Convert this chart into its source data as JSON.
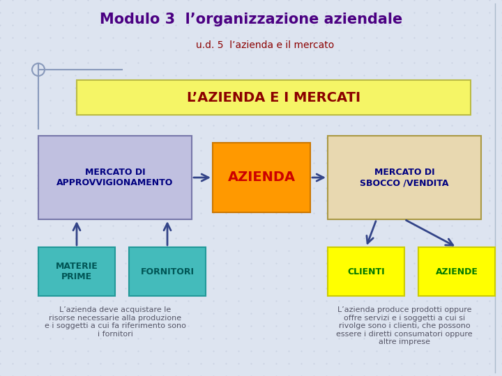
{
  "title": "Modulo 3  l’organizzazione aziendale",
  "subtitle": "u.d. 5  l’azienda e il mercato",
  "title_color": "#4b0082",
  "subtitle_color": "#8b0000",
  "bg_color": "#dde4f0",
  "main_banner_text": "L’AZIENDA E I MERCATI",
  "main_banner_bg": "#f5f566",
  "main_banner_border": "#bbbb44",
  "main_banner_text_color": "#8b0000",
  "box_mercato_approv": {
    "label": "MERCATO DI\nAPPROVVIGIONAMENTO",
    "bg": "#c0c0e0",
    "border": "#7777aa",
    "text_color": "#000080"
  },
  "box_azienda": {
    "label": "AZIENDA",
    "bg": "#ff9900",
    "border": "#cc7700",
    "text_color": "#cc0000"
  },
  "box_mercato_sbocco": {
    "label": "MERCATO DI\nSBOCCO /VENDITA",
    "bg": "#e8d8b0",
    "border": "#aa9944",
    "text_color": "#000080"
  },
  "box_materie": {
    "label": "MATERIE\nPRIME",
    "bg": "#44bbbb",
    "border": "#229999",
    "text_color": "#005555"
  },
  "box_fornitori": {
    "label": "FORNITORI",
    "bg": "#44bbbb",
    "border": "#229999",
    "text_color": "#005555"
  },
  "box_clienti": {
    "label": "CLIENTI",
    "bg": "#ffff00",
    "border": "#cccc00",
    "text_color": "#007700"
  },
  "box_aziende": {
    "label": "AZIENDE",
    "bg": "#ffff00",
    "border": "#cccc00",
    "text_color": "#007700"
  },
  "arrow_color": "#334488",
  "text_left": "L’azienda deve acquistare le\nrisorse necessarie alla produzione\ne i soggetti a cui fa riferimento sono\ni fornitori",
  "text_right": "L’azienda produce prodotti oppure\noffre servizi e i soggetti a cui si\nrivolge sono i clienti, che possono\nessere i diretti consumatori oppure\naltre imprese",
  "text_color_body": "#555566",
  "grid_color": "#c8d0e0"
}
